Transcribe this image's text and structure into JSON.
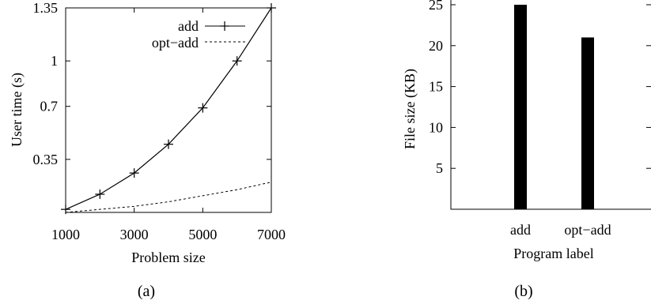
{
  "chart_data": [
    {
      "type": "line",
      "caption": "(a)",
      "xlabel": "Problem size",
      "ylabel": "User time (s)",
      "xlim": [
        1000,
        7000
      ],
      "ylim": [
        0.0,
        1.35
      ],
      "x_ticks": [
        1000,
        3000,
        5000,
        7000
      ],
      "x_tick_labels": [
        "1000",
        "3000",
        "5000",
        "7000"
      ],
      "y_ticks": [
        0.35,
        0.7,
        1,
        1.35
      ],
      "y_tick_labels": [
        "0.35",
        "0.7",
        "1",
        "1.35"
      ],
      "grid": false,
      "legend_position": "top-right",
      "series": [
        {
          "name": "add",
          "style": "solid line with plus markers",
          "x": [
            1000,
            2000,
            3000,
            4000,
            5000,
            6000,
            7000
          ],
          "y": [
            0.02,
            0.12,
            0.26,
            0.45,
            0.69,
            1.0,
            1.35
          ]
        },
        {
          "name": "opt−add",
          "style": "dashed line",
          "x": [
            1000,
            2000,
            3000,
            4000,
            5000,
            6000,
            7000
          ],
          "y": [
            0.0,
            0.02,
            0.04,
            0.07,
            0.11,
            0.15,
            0.2
          ]
        }
      ]
    },
    {
      "type": "bar",
      "caption": "(b)",
      "xlabel": "Program label",
      "ylabel": "File size (KB)",
      "ylim": [
        0,
        25
      ],
      "y_ticks": [
        5,
        10,
        15,
        20,
        25
      ],
      "y_tick_labels": [
        "5",
        "10",
        "15",
        "20",
        "25"
      ],
      "grid": false,
      "categories": [
        "add",
        "opt−add"
      ],
      "values": [
        25,
        21
      ],
      "bar_color": "#000000"
    }
  ]
}
